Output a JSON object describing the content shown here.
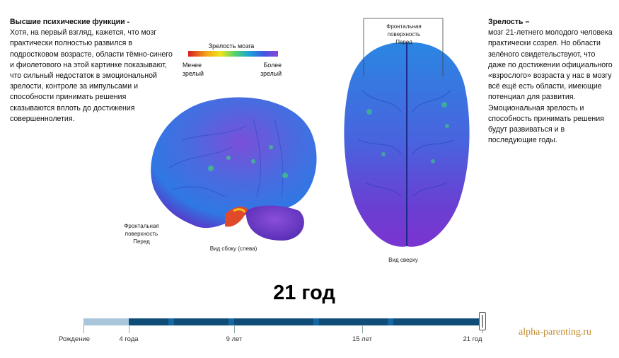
{
  "left_panel": {
    "lead": "Высшие психические функции -",
    "body": "Хотя, на первый взгляд, кажется, что мозг практически полностью развился в подростковом возрасте, области тёмно-синего и фиолетового на этой картинке показывают, что сильный недостаток в эмоциональной зрелости, контроле за импульсами и способности принимать решения сказываются вплоть до достижения совершеннолетия."
  },
  "right_panel": {
    "lead": "Зрелость –",
    "body": "мозг 21-летнего молодого человека практически созрел. Но области зелёного свидетельствуют, что даже по достижении официального «взрослого» возраста у нас в мозгу всё ещё есть области, имеющие потенциал для развития. Эмоциональная зрелость и способность принимать решения будут развиваться и в последующие годы."
  },
  "legend": {
    "title": "Зрелость мозга",
    "low": "Менее зрелый",
    "high": "Более зрелый",
    "gradient_colors": [
      "#d81e1e",
      "#f2a21b",
      "#f0e61c",
      "#53d26b",
      "#1aa3d8",
      "#3f57e0",
      "#8d44d9"
    ]
  },
  "side_view": {
    "front_label": "Фронтальная поверхность Перед",
    "caption": "Вид сбоку (слева)"
  },
  "top_view": {
    "front_label": "Фронтальная поверхность Перед",
    "caption": "Вид сверху"
  },
  "age_title": "21 год",
  "timeline": {
    "labels": [
      "Рождение",
      "4 года",
      "9 лет",
      "15 лет",
      "21 год"
    ],
    "current": "21 год",
    "colors": {
      "elapsed": "#a8c5da",
      "track": "#0f4c78",
      "segment": "#15679f"
    }
  },
  "watermark": "alpha-parenting.ru"
}
